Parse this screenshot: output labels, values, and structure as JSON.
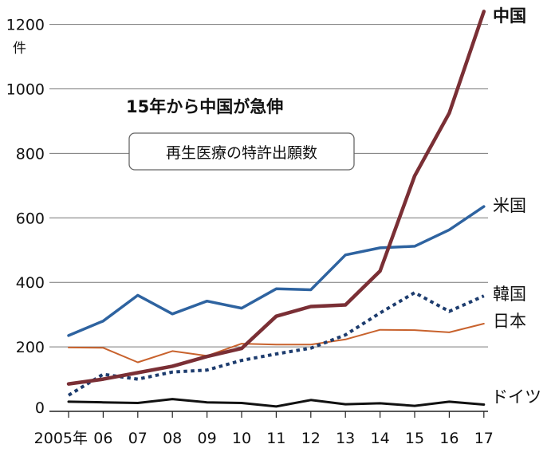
{
  "chart_data": {
    "type": "line",
    "title": "15年から中国が急伸",
    "subtitle": "再生医療の特許出願数",
    "ylabel": "件",
    "ylim": [
      0,
      1250
    ],
    "yticks": [
      0,
      200,
      400,
      600,
      800,
      1000,
      1200
    ],
    "grid": true,
    "categories": [
      "2005年",
      "06",
      "07",
      "08",
      "09",
      "10",
      "11",
      "12",
      "13",
      "14",
      "15",
      "16",
      "17"
    ],
    "series": [
      {
        "name": "中国",
        "color": "#7a2f35",
        "style": "solid",
        "width": 4.5,
        "label_bold": true,
        "values": [
          85,
          100,
          120,
          140,
          170,
          195,
          295,
          325,
          330,
          435,
          730,
          925,
          1240
        ]
      },
      {
        "name": "米国",
        "color": "#2e63a0",
        "style": "solid",
        "width": 3.5,
        "values": [
          235,
          280,
          360,
          302,
          342,
          320,
          380,
          377,
          485,
          507,
          512,
          563,
          635
        ]
      },
      {
        "name": "韓国",
        "color": "#1d3c6e",
        "style": "dotted",
        "width": 4,
        "values": [
          50,
          115,
          100,
          122,
          128,
          158,
          178,
          196,
          237,
          305,
          368,
          310,
          358
        ]
      },
      {
        "name": "日本",
        "color": "#c8622d",
        "style": "solid",
        "width": 2,
        "values": [
          198,
          197,
          152,
          187,
          172,
          210,
          207,
          207,
          223,
          253,
          252,
          245,
          272
        ]
      },
      {
        "name": "ドイツ",
        "color": "#111111",
        "style": "solid",
        "width": 3,
        "values": [
          30,
          28,
          26,
          38,
          28,
          26,
          15,
          35,
          22,
          25,
          17,
          30,
          21
        ]
      }
    ]
  }
}
